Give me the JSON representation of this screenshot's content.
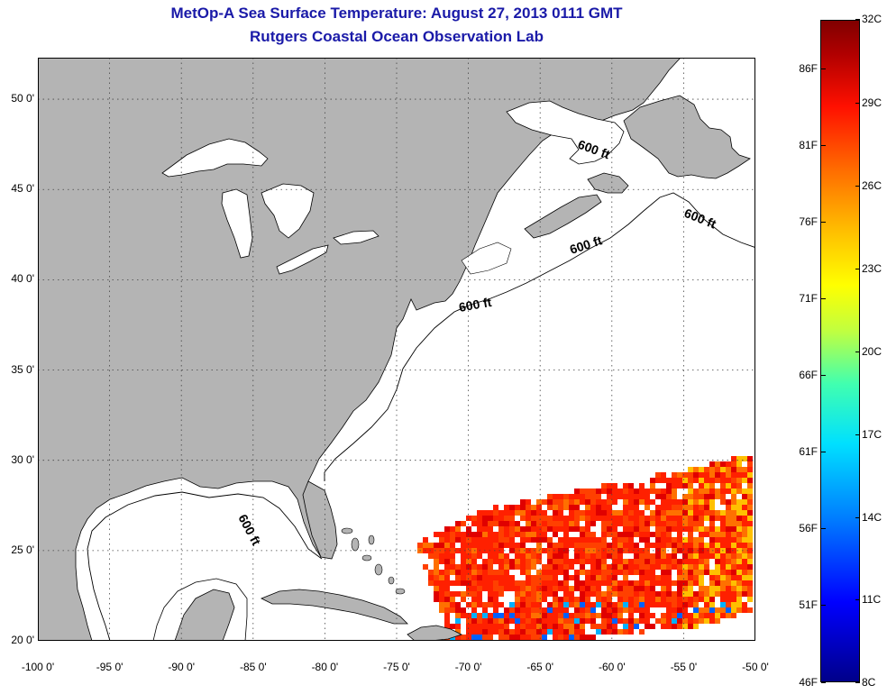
{
  "title": {
    "line1": "MetOp-A Sea Surface Temperature:  August 27, 2013 0111 GMT",
    "line2": "Rutgers Coastal Ocean Observation Lab"
  },
  "map": {
    "lon_range": [
      -100,
      -50
    ],
    "lat_range": [
      20,
      52.3
    ],
    "lon_ticks": [
      "-100 0'",
      "-95 0'",
      "-90 0'",
      "-85 0'",
      "-80 0'",
      "-75 0'",
      "-70 0'",
      "-65 0'",
      "-60 0'",
      "-55 0'",
      "-50 0'"
    ],
    "lat_ticks": [
      "50 0'",
      "45 0'",
      "40 0'",
      "35 0'",
      "30 0'",
      "25 0'",
      "20 0'"
    ],
    "contour_labels": [
      "600 ft",
      "600 ft",
      "600 ft",
      "600 ft",
      "600 ft"
    ],
    "land_color": "#b4b4b4",
    "water_color": "#ffffff",
    "sst_colors": [
      "#ff2000",
      "#ff4000",
      "#e00000",
      "#ff7000",
      "#ffc000",
      "#0060ff",
      "#00b0ff",
      "#ffffff"
    ]
  },
  "colorbar": {
    "fahrenheit": [
      "86F",
      "81F",
      "76F",
      "71F",
      "66F",
      "61F",
      "56F",
      "51F",
      "46F"
    ],
    "celsius": [
      "32C",
      "29C",
      "26C",
      "23C",
      "20C",
      "17C",
      "14C",
      "11C",
      "8C"
    ]
  }
}
